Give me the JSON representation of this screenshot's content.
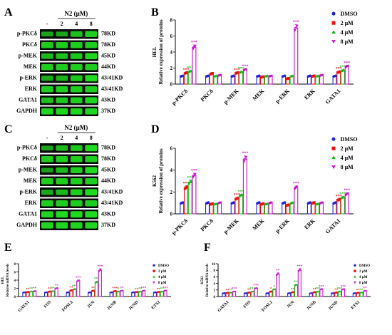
{
  "colors": {
    "dmso": "#2222dd",
    "n2_2": "#ee1111",
    "n2_4": "#11bb11",
    "n2_8": "#cc11cc",
    "blot_bg": "#0a0a0a",
    "band": "#22ee22"
  },
  "western": {
    "A": {
      "letter": "A",
      "header": "N2 (μM)",
      "lanes": [
        "-",
        "2",
        "4",
        "8"
      ],
      "rows": [
        {
          "name": "p-PKCδ",
          "kd": "78KD",
          "band": [
            0.55,
            0.55,
            0.75,
            0.85
          ]
        },
        {
          "name": "PKCδ",
          "kd": "78KD",
          "band": [
            0.85,
            0.85,
            0.85,
            0.85
          ]
        },
        {
          "name": "p-MEK",
          "kd": "45KD",
          "band": [
            0.7,
            0.75,
            0.8,
            0.9
          ]
        },
        {
          "name": "MEK",
          "kd": "44KD",
          "band": [
            0.85,
            0.85,
            0.85,
            0.85
          ]
        },
        {
          "name": "p-ERK",
          "kd": "43/41KD",
          "band": [
            0.6,
            0.65,
            0.8,
            0.95
          ]
        },
        {
          "name": "ERK",
          "kd": "43/41KD",
          "band": [
            0.85,
            0.85,
            0.85,
            0.85
          ]
        },
        {
          "name": "GATA1",
          "kd": "43KD",
          "band": [
            0.75,
            0.8,
            0.85,
            0.9
          ]
        },
        {
          "name": "GAPDH",
          "kd": "37KD",
          "band": [
            0.9,
            0.9,
            0.9,
            0.9
          ]
        }
      ]
    },
    "C": {
      "letter": "C",
      "header": "N2 (μM)",
      "lanes": [
        "-",
        "2",
        "4",
        "8"
      ],
      "rows": [
        {
          "name": "p-PKCδ",
          "kd": "78KD",
          "band": [
            0.55,
            0.7,
            0.8,
            0.95
          ]
        },
        {
          "name": "PKCδ",
          "kd": "78KD",
          "band": [
            0.85,
            0.85,
            0.85,
            0.85
          ]
        },
        {
          "name": "p-MEK",
          "kd": "45KD",
          "band": [
            0.5,
            0.7,
            0.85,
            0.95
          ]
        },
        {
          "name": "MEK",
          "kd": "44KD",
          "band": [
            0.85,
            0.85,
            0.85,
            0.85
          ]
        },
        {
          "name": "p-ERK",
          "kd": "43/41KD",
          "band": [
            0.6,
            0.7,
            0.85,
            0.95
          ]
        },
        {
          "name": "ERK",
          "kd": "43/41KD",
          "band": [
            0.85,
            0.85,
            0.85,
            0.85
          ]
        },
        {
          "name": "GATA1",
          "kd": "43KD",
          "band": [
            0.9,
            0.95,
            0.95,
            0.95
          ]
        },
        {
          "name": "GAPDH",
          "kd": "37KD",
          "band": [
            0.9,
            0.9,
            0.9,
            0.9
          ]
        }
      ]
    }
  },
  "chart_data": [
    {
      "panel": "B",
      "type": "bar",
      "ylabel": "Relative expression of proteins",
      "cell": "HEL",
      "categories": [
        "p-PKCδ",
        "PKCδ",
        "p-MEK",
        "MEK",
        "p-ERK",
        "ERK",
        "GATA1"
      ],
      "ylim": [
        0,
        8
      ],
      "yticks": [
        0,
        2,
        4,
        6,
        8
      ],
      "legend": [
        "DMSO",
        "2 μM",
        "4 μM",
        "8 μM"
      ],
      "series": [
        {
          "name": "DMSO",
          "values": [
            1.0,
            1.0,
            1.0,
            1.0,
            1.0,
            1.0,
            1.0
          ]
        },
        {
          "name": "2 μM",
          "values": [
            1.4,
            1.3,
            1.4,
            0.9,
            0.7,
            1.0,
            1.5
          ]
        },
        {
          "name": "4 μM",
          "values": [
            1.6,
            1.0,
            1.5,
            1.0,
            1.0,
            1.0,
            1.7
          ]
        },
        {
          "name": "8 μM",
          "values": [
            4.6,
            1.1,
            1.8,
            1.0,
            7.0,
            1.1,
            2.2
          ]
        }
      ],
      "stars": [
        [
          "",
          "",
          "",
          "",
          "",
          "",
          ""
        ],
        [
          "***",
          "",
          "***",
          "",
          "",
          "",
          "***"
        ],
        [
          "***",
          "",
          "***",
          "",
          "",
          "",
          "***"
        ],
        [
          "***",
          "",
          "***",
          "",
          "***",
          "",
          "***"
        ]
      ]
    },
    {
      "panel": "D",
      "type": "bar",
      "ylabel": "Relative expression of proteins",
      "cell": "K562",
      "categories": [
        "p-PKCδ",
        "PKCδ",
        "p-MEK",
        "MEK",
        "p-ERK",
        "ERK",
        "GATA1"
      ],
      "ylim": [
        0,
        6
      ],
      "yticks": [
        0,
        2,
        4,
        6
      ],
      "legend": [
        "DMSO",
        "2 μM",
        "4 μM",
        "8 μM"
      ],
      "series": [
        {
          "name": "DMSO",
          "values": [
            1.0,
            1.0,
            1.0,
            1.0,
            1.0,
            1.0,
            1.0
          ]
        },
        {
          "name": "2 μM",
          "values": [
            2.4,
            0.9,
            1.4,
            0.9,
            0.8,
            1.0,
            1.3
          ]
        },
        {
          "name": "4 μM",
          "values": [
            2.9,
            0.9,
            1.7,
            0.9,
            1.0,
            0.9,
            1.5
          ]
        },
        {
          "name": "8 μM",
          "values": [
            3.5,
            1.0,
            5.0,
            1.0,
            2.4,
            1.0,
            1.8
          ]
        }
      ],
      "stars": [
        [
          "",
          "",
          "",
          "",
          "",
          "",
          ""
        ],
        [
          "***",
          "",
          "***",
          "",
          "",
          "",
          "***"
        ],
        [
          "***",
          "",
          "***",
          "",
          "",
          "",
          "***"
        ],
        [
          "***",
          "",
          "***",
          "",
          "***",
          "",
          "***"
        ]
      ]
    },
    {
      "panel": "E",
      "type": "bar",
      "ylabel": "Relative mRNA levels",
      "cell": "HEL",
      "categories": [
        "GATA1",
        "FOS",
        "FOSL2",
        "JUN",
        "JUNB",
        "JUND",
        "ETS2"
      ],
      "ylim": [
        0,
        8
      ],
      "yticks": [
        0,
        2,
        4,
        6,
        8
      ],
      "legend": [
        "DMSO",
        "2 μM",
        "4 μM",
        "8 μM"
      ],
      "series": [
        {
          "name": "DMSO",
          "values": [
            1.0,
            1.0,
            1.0,
            1.0,
            1.0,
            1.0,
            1.0
          ]
        },
        {
          "name": "2 μM",
          "values": [
            1.1,
            1.2,
            1.5,
            1.4,
            1.3,
            1.1,
            1.1
          ]
        },
        {
          "name": "4 μM",
          "values": [
            1.2,
            1.3,
            1.8,
            3.5,
            1.2,
            1.2,
            1.2
          ]
        },
        {
          "name": "8 μM",
          "values": [
            1.3,
            2.0,
            3.8,
            6.4,
            1.4,
            1.4,
            1.4
          ]
        }
      ],
      "stars": [
        [
          "",
          "",
          "",
          "",
          "",
          "",
          ""
        ],
        [
          "**",
          "**",
          "**",
          "**",
          "***",
          "**",
          "**"
        ],
        [
          "**",
          "**",
          "***",
          "***",
          "*",
          "**",
          "**"
        ],
        [
          "**",
          "**",
          "***",
          "***",
          "**",
          "***",
          "***"
        ]
      ]
    },
    {
      "panel": "F",
      "type": "bar",
      "ylabel": "Relative mRNA levels",
      "cell": "K562",
      "categories": [
        "GATA1",
        "FOS",
        "FOSL2",
        "JUN",
        "JUNB",
        "JUND",
        "ETS2"
      ],
      "ylim": [
        0,
        10
      ],
      "yticks": [
        0,
        2,
        4,
        6,
        8,
        10
      ],
      "legend": [
        "DMSO",
        "2 μM",
        "4 μM",
        "8 μM"
      ],
      "series": [
        {
          "name": "DMSO",
          "values": [
            1.0,
            1.0,
            1.0,
            1.0,
            1.0,
            1.0,
            1.0
          ]
        },
        {
          "name": "2 μM",
          "values": [
            1.1,
            1.2,
            1.5,
            1.3,
            1.3,
            1.2,
            1.1
          ]
        },
        {
          "name": "4 μM",
          "values": [
            1.2,
            1.5,
            2.2,
            3.5,
            1.5,
            1.5,
            1.2
          ]
        },
        {
          "name": "8 μM",
          "values": [
            1.5,
            2.5,
            6.8,
            8.0,
            2.2,
            2.2,
            1.7
          ]
        }
      ],
      "stars": [
        [
          "",
          "",
          "",
          "",
          "",
          "",
          ""
        ],
        [
          "**",
          "**",
          "*",
          "**",
          "**",
          "**",
          "**"
        ],
        [
          "**",
          "***",
          "*",
          "***",
          "***",
          "***",
          "**"
        ],
        [
          "***",
          "***",
          "**",
          "***",
          "***",
          "***",
          "**"
        ]
      ]
    }
  ]
}
